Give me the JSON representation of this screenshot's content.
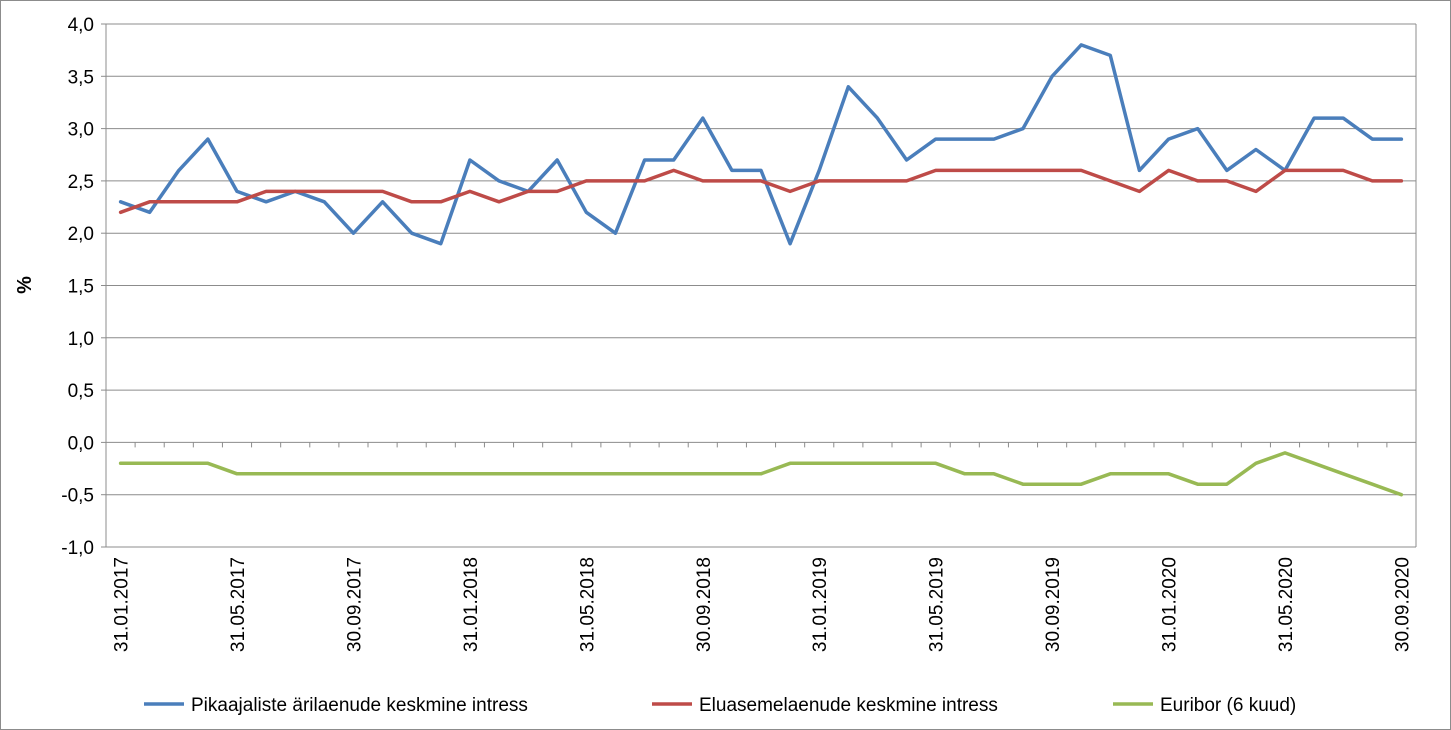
{
  "chart_data": {
    "type": "line",
    "ylabel": "%",
    "ylim": [
      -1.0,
      4.0
    ],
    "y_ticks": [
      "-1,0",
      "-0,5",
      "0,0",
      "0,5",
      "1,0",
      "1,5",
      "2,0",
      "2,5",
      "3,0",
      "3,5",
      "4,0"
    ],
    "x_ticks": [
      "31.01.2017",
      "31.05.2017",
      "30.09.2017",
      "31.01.2018",
      "31.05.2018",
      "30.09.2018",
      "31.01.2019",
      "31.05.2019",
      "30.09.2019",
      "31.01.2020",
      "31.05.2020",
      "30.09.2020"
    ],
    "x": [
      "31.01.2017",
      "28.02.2017",
      "31.03.2017",
      "30.04.2017",
      "31.05.2017",
      "30.06.2017",
      "31.07.2017",
      "31.08.2017",
      "30.09.2017",
      "31.10.2017",
      "30.11.2017",
      "31.12.2017",
      "31.01.2018",
      "28.02.2018",
      "31.03.2018",
      "30.04.2018",
      "31.05.2018",
      "30.06.2018",
      "31.07.2018",
      "31.08.2018",
      "30.09.2018",
      "31.10.2018",
      "30.11.2018",
      "31.12.2018",
      "31.01.2019",
      "28.02.2019",
      "31.03.2019",
      "30.04.2019",
      "31.05.2019",
      "30.06.2019",
      "31.07.2019",
      "31.08.2019",
      "30.09.2019",
      "31.10.2019",
      "30.11.2019",
      "31.12.2019",
      "31.01.2020",
      "29.02.2020",
      "31.03.2020",
      "30.04.2020",
      "31.05.2020",
      "30.06.2020",
      "31.07.2020",
      "31.08.2020",
      "30.09.2020"
    ],
    "grid": true,
    "legend_position": "bottom",
    "series": [
      {
        "name": "Pikaajaliste ärilaenude keskmine intress",
        "color": "#4a7ebb",
        "values": [
          2.3,
          2.2,
          2.6,
          2.9,
          2.4,
          2.3,
          2.4,
          2.3,
          2.0,
          2.3,
          2.0,
          1.9,
          2.7,
          2.5,
          2.4,
          2.7,
          2.2,
          2.0,
          2.7,
          2.7,
          3.1,
          2.6,
          2.6,
          1.9,
          2.6,
          3.4,
          3.1,
          2.7,
          2.9,
          2.9,
          2.9,
          3.0,
          3.5,
          3.8,
          3.7,
          2.6,
          2.9,
          3.0,
          2.6,
          2.8,
          2.6,
          3.1,
          3.1,
          2.9,
          2.9
        ]
      },
      {
        "name": "Eluasemelaenude keskmine intress",
        "color": "#be4b48",
        "values": [
          2.2,
          2.3,
          2.3,
          2.3,
          2.3,
          2.4,
          2.4,
          2.4,
          2.4,
          2.4,
          2.3,
          2.3,
          2.4,
          2.3,
          2.4,
          2.4,
          2.5,
          2.5,
          2.5,
          2.6,
          2.5,
          2.5,
          2.5,
          2.4,
          2.5,
          2.5,
          2.5,
          2.5,
          2.6,
          2.6,
          2.6,
          2.6,
          2.6,
          2.6,
          2.5,
          2.4,
          2.6,
          2.5,
          2.5,
          2.4,
          2.6,
          2.6,
          2.6,
          2.5,
          2.5
        ]
      },
      {
        "name": "Euribor (6 kuud)",
        "color": "#98b954",
        "values": [
          -0.2,
          -0.2,
          -0.2,
          -0.2,
          -0.3,
          -0.3,
          -0.3,
          -0.3,
          -0.3,
          -0.3,
          -0.3,
          -0.3,
          -0.3,
          -0.3,
          -0.3,
          -0.3,
          -0.3,
          -0.3,
          -0.3,
          -0.3,
          -0.3,
          -0.3,
          -0.3,
          -0.2,
          -0.2,
          -0.2,
          -0.2,
          -0.2,
          -0.2,
          -0.3,
          -0.3,
          -0.4,
          -0.4,
          -0.4,
          -0.3,
          -0.3,
          -0.3,
          -0.4,
          -0.4,
          -0.2,
          -0.1,
          -0.2,
          -0.3,
          -0.4,
          -0.5
        ]
      }
    ]
  }
}
